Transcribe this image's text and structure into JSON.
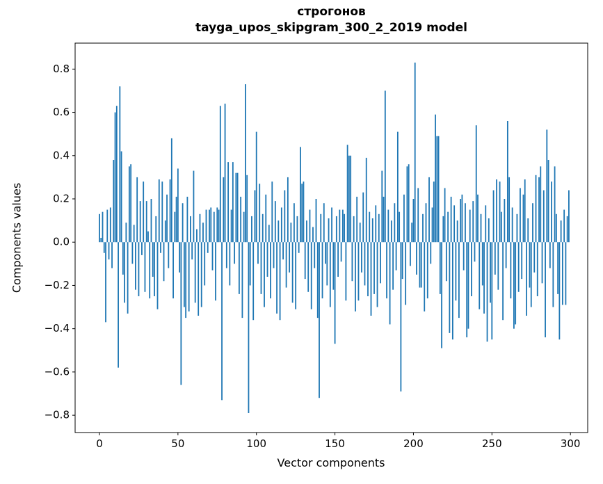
{
  "chart_data": {
    "type": "bar",
    "title_lines": [
      "строгонов",
      "tayga_upos_skipgram_300_2_2019 model"
    ],
    "xlabel": "Vector components",
    "ylabel": "Components values",
    "bar_color": "#1f77b4",
    "grid": false,
    "legend": "none",
    "n_components": 300,
    "xlim": [
      -15.5,
      311
    ],
    "ylim": [
      -0.88,
      0.92
    ],
    "xticks": [
      0,
      50,
      100,
      150,
      200,
      250,
      300
    ],
    "xtick_labels": [
      "0",
      "50",
      "100",
      "150",
      "200",
      "250",
      "300"
    ],
    "yticks": [
      -0.8,
      -0.6,
      -0.4,
      -0.2,
      0.0,
      0.2,
      0.4,
      0.6,
      0.8
    ],
    "ytick_labels": [
      "−0.8",
      "−0.6",
      "−0.4",
      "−0.2",
      "0.0",
      "0.2",
      "0.4",
      "0.6",
      "0.8"
    ],
    "values": [
      0.13,
      0.02,
      0.14,
      -0.05,
      -0.37,
      0.15,
      -0.08,
      0.16,
      -0.12,
      0.38,
      0.6,
      0.63,
      -0.58,
      0.72,
      0.42,
      -0.15,
      -0.28,
      0.09,
      -0.33,
      0.35,
      0.36,
      -0.1,
      0.08,
      -0.22,
      0.3,
      -0.25,
      0.19,
      -0.06,
      0.28,
      -0.23,
      0.19,
      0.05,
      -0.26,
      0.2,
      -0.16,
      -0.25,
      0.12,
      -0.31,
      0.29,
      -0.05,
      0.28,
      -0.18,
      0.1,
      0.22,
      -0.12,
      0.29,
      0.48,
      -0.26,
      0.14,
      0.21,
      0.34,
      -0.14,
      -0.66,
      0.18,
      -0.3,
      -0.35,
      0.21,
      -0.32,
      0.12,
      -0.08,
      0.33,
      -0.28,
      0.06,
      -0.34,
      0.13,
      -0.3,
      0.09,
      -0.2,
      0.15,
      -0.05,
      0.15,
      0.16,
      -0.13,
      0.14,
      -0.27,
      0.16,
      0.15,
      0.63,
      -0.73,
      0.3,
      0.64,
      -0.12,
      0.37,
      -0.2,
      0.15,
      0.37,
      -0.1,
      0.32,
      0.32,
      -0.24,
      0.21,
      -0.35,
      0.14,
      0.73,
      0.31,
      -0.79,
      -0.2,
      0.12,
      -0.36,
      0.24,
      0.51,
      -0.1,
      0.27,
      -0.24,
      0.13,
      -0.3,
      0.22,
      -0.16,
      0.08,
      -0.26,
      0.28,
      -0.12,
      0.19,
      -0.33,
      0.1,
      -0.36,
      0.16,
      -0.08,
      0.24,
      -0.21,
      0.3,
      -0.14,
      0.09,
      -0.28,
      0.18,
      -0.31,
      0.12,
      -0.05,
      0.44,
      0.27,
      0.28,
      -0.17,
      0.1,
      -0.23,
      0.15,
      -0.31,
      0.07,
      -0.12,
      0.2,
      -0.35,
      -0.72,
      0.13,
      -0.26,
      0.18,
      -0.1,
      -0.2,
      0.11,
      -0.3,
      0.16,
      -0.22,
      -0.47,
      0.12,
      -0.16,
      0.15,
      -0.09,
      0.15,
      0.13,
      -0.27,
      0.45,
      0.4,
      0.4,
      -0.18,
      0.12,
      -0.32,
      0.21,
      -0.27,
      0.09,
      -0.14,
      0.23,
      -0.2,
      0.39,
      -0.25,
      0.14,
      -0.34,
      0.11,
      -0.24,
      0.17,
      -0.3,
      0.13,
      -0.19,
      0.33,
      0.21,
      0.7,
      -0.26,
      0.15,
      -0.38,
      0.1,
      -0.22,
      0.18,
      -0.13,
      0.51,
      0.14,
      -0.69,
      -0.17,
      0.22,
      -0.29,
      0.35,
      0.36,
      -0.11,
      0.09,
      0.2,
      0.83,
      -0.15,
      0.25,
      -0.21,
      -0.21,
      0.13,
      -0.32,
      0.18,
      -0.26,
      0.3,
      -0.1,
      0.16,
      0.28,
      0.59,
      0.49,
      0.49,
      -0.24,
      -0.49,
      0.12,
      0.25,
      -0.18,
      0.14,
      -0.42,
      0.21,
      -0.45,
      0.17,
      -0.27,
      0.1,
      -0.35,
      0.2,
      0.22,
      -0.13,
      0.18,
      -0.44,
      -0.4,
      0.15,
      -0.25,
      0.19,
      -0.09,
      0.54,
      0.22,
      -0.31,
      0.13,
      -0.2,
      -0.33,
      0.17,
      -0.46,
      0.11,
      -0.28,
      -0.45,
      0.24,
      -0.15,
      0.29,
      -0.22,
      0.28,
      0.14,
      -0.36,
      0.2,
      -0.12,
      0.56,
      0.3,
      -0.26,
      0.16,
      -0.4,
      -0.38,
      0.13,
      -0.23,
      0.25,
      -0.17,
      0.22,
      0.29,
      -0.34,
      0.11,
      -0.21,
      -0.3,
      0.18,
      -0.14,
      0.31,
      -0.25,
      0.3,
      0.35,
      -0.19,
      0.24,
      -0.44,
      0.52,
      0.38,
      -0.12,
      0.28,
      -0.3,
      0.35,
      0.13,
      -0.24,
      -0.45,
      0.1,
      -0.29,
      0.15,
      -0.29,
      0.12,
      0.24
    ]
  }
}
